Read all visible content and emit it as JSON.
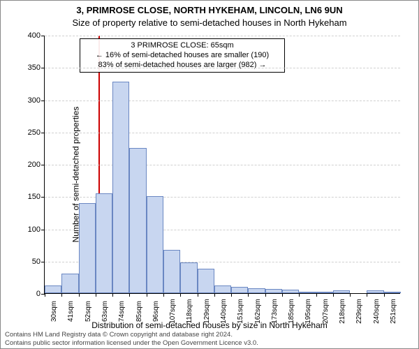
{
  "title_line1": "3, PRIMROSE CLOSE, NORTH HYKEHAM, LINCOLN, LN6 9UN",
  "title_line2": "Size of property relative to semi-detached houses in North Hykeham",
  "ylabel": "Number of semi-detached properties",
  "xlabel": "Distribution of semi-detached houses by size in North Hykeham",
  "footer_line1": "Contains HM Land Registry data © Crown copyright and database right 2024.",
  "footer_line2": "Contains public sector information licensed under the Open Government Licence v3.0.",
  "chart": {
    "type": "histogram",
    "ylim": [
      0,
      400
    ],
    "ytick_step": 50,
    "bar_fill": "#c8d6f0",
    "bar_stroke": "#6a87c2",
    "grid_color": "#d0d0d0",
    "background_color": "#ffffff",
    "axis_color": "#000000",
    "marker_color": "#cc0000",
    "marker_x_value": 65,
    "x_start": 30,
    "x_step": 11,
    "x_unit": "sqm",
    "x_labels": [
      "30sqm",
      "41sqm",
      "52sqm",
      "63sqm",
      "74sqm",
      "85sqm",
      "96sqm",
      "107sqm",
      "118sqm",
      "129sqm",
      "140sqm",
      "151sqm",
      "162sqm",
      "173sqm",
      "185sqm",
      "195sqm",
      "207sqm",
      "218sqm",
      "229sqm",
      "240sqm",
      "251sqm"
    ],
    "values": [
      12,
      30,
      140,
      155,
      328,
      225,
      150,
      67,
      48,
      38,
      12,
      10,
      8,
      7,
      5,
      2,
      2,
      4,
      0,
      4,
      2
    ],
    "y_ticks": [
      0,
      50,
      100,
      150,
      200,
      250,
      300,
      350,
      400
    ]
  },
  "annotation": {
    "line1": "3 PRIMROSE CLOSE: 65sqm",
    "line2": "← 16% of semi-detached houses are smaller (190)",
    "line3": "83% of semi-detached houses are larger (982) →"
  }
}
